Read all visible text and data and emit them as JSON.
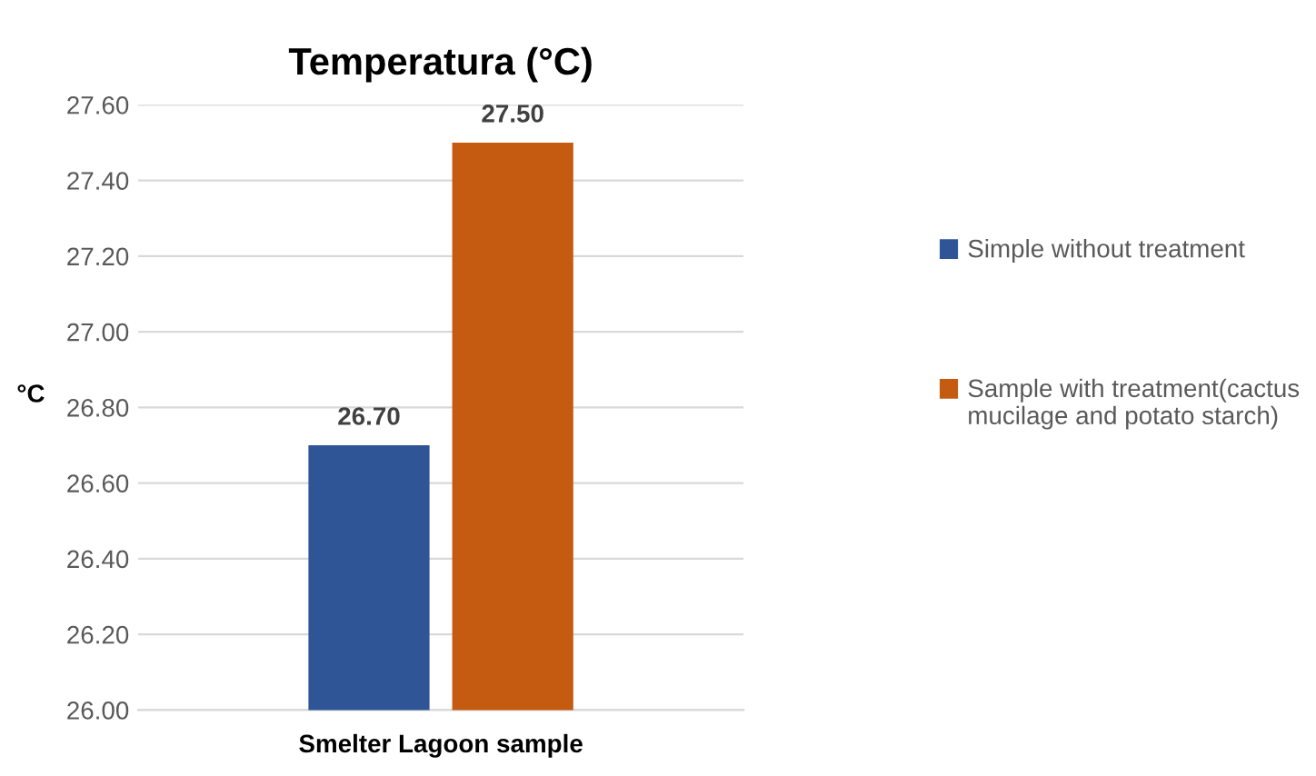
{
  "chart_data": {
    "type": "bar",
    "title": "Temperatura (°C)",
    "xlabel": "Smelter Lagoon sample",
    "ylabel": "°C",
    "categories": [
      null
    ],
    "series": [
      {
        "name": "Simple without treatment",
        "color": "#2f5597",
        "values": [
          26.7
        ],
        "value_labels": [
          "26.70"
        ]
      },
      {
        "name": "Sample with treatment(cactus mucilage and potato starch)",
        "color": "#c55a11",
        "values": [
          27.5
        ],
        "value_labels": [
          "27.50"
        ]
      }
    ],
    "ylim": [
      26.0,
      27.6
    ],
    "yticks": [
      {
        "value": 26.0,
        "label": "26.00"
      },
      {
        "value": 26.2,
        "label": "26.20"
      },
      {
        "value": 26.4,
        "label": "26.40"
      },
      {
        "value": 26.6,
        "label": "26.60"
      },
      {
        "value": 26.8,
        "label": "26.80"
      },
      {
        "value": 27.0,
        "label": "27.00"
      },
      {
        "value": 27.2,
        "label": "27.20"
      },
      {
        "value": 27.4,
        "label": "27.40"
      },
      {
        "value": 27.6,
        "label": "27.60"
      }
    ],
    "grid": "y",
    "legend": "right"
  }
}
